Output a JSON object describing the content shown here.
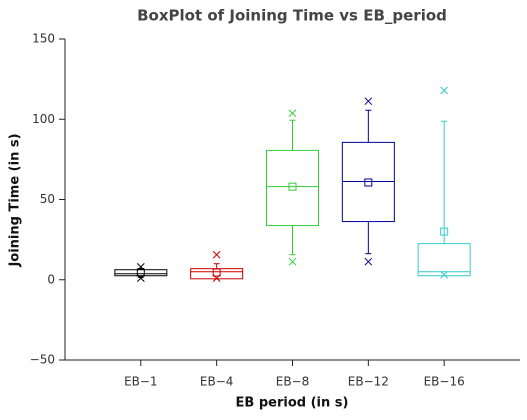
{
  "chart_data": {
    "type": "box",
    "title": "BoxPlot of Joining Time vs EB_period",
    "xlabel": "EB period (in s)",
    "ylabel": "Joining Time (in s)",
    "categories": [
      "EB−1",
      "EB−4",
      "EB−8",
      "EB−12",
      "EB−16"
    ],
    "colors": [
      "#000000",
      "#cc0000",
      "#33cc33",
      "#000099",
      "#33cccc"
    ],
    "boxes": [
      {
        "whisker_low": 1.5,
        "q1": 2.5,
        "median": 3.75,
        "q3": 6.25,
        "whisker_high": 7,
        "mean": 4.5,
        "min": 1,
        "max": 8
      },
      {
        "whisker_low": 0.5,
        "q1": 0.6,
        "median": 5,
        "q3": 6.9,
        "whisker_high": 10,
        "mean": 4.5,
        "min": 1,
        "max": 15.6
      },
      {
        "whisker_low": 15.6,
        "q1": 33.75,
        "median": 58,
        "q3": 80.6,
        "whisker_high": 99.4,
        "mean": 58,
        "min": 11.25,
        "max": 103.75
      },
      {
        "whisker_low": 16.25,
        "q1": 36.25,
        "median": 61.25,
        "q3": 85.6,
        "whisker_high": 105.6,
        "mean": 60.6,
        "min": 11.25,
        "max": 111.25
      },
      {
        "whisker_low": 2.5,
        "q1": 2.5,
        "median": 5,
        "q3": 22.5,
        "whisker_high": 98.75,
        "mean": 30,
        "min": 3.1,
        "max": 118
      }
    ],
    "ylim": [
      -50,
      150
    ],
    "yticks": [
      {
        "value": -50,
        "label": "−50"
      },
      0,
      50,
      100,
      150
    ],
    "grid": false
  }
}
